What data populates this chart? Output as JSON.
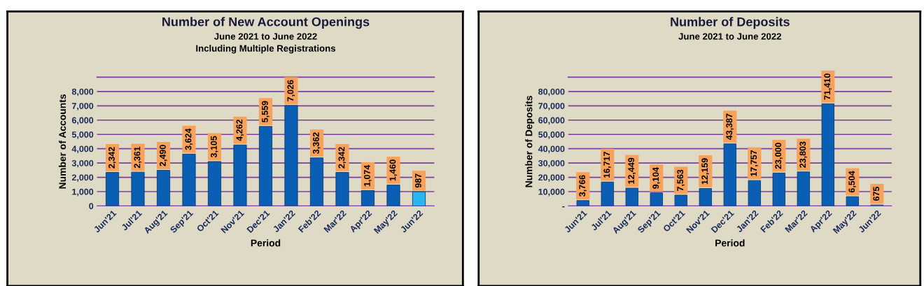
{
  "chart_data": [
    {
      "type": "bar",
      "title": "Number of New Account Openings",
      "subtitle": "June 2021 to June 2022\nIncluding Multiple Registrations",
      "xlabel": "Period",
      "ylabel": "Number of Accounts",
      "categories": [
        "Jun'21",
        "Jul'21",
        "Aug'21",
        "Sep'21",
        "Oct'21",
        "Nov'21",
        "Dec'21",
        "Jan'22",
        "Feb'22",
        "Mar'22",
        "Apr'22",
        "May'22",
        "Jun'22"
      ],
      "values": [
        2342,
        2361,
        2490,
        3624,
        3105,
        4262,
        5559,
        7026,
        3362,
        2342,
        1074,
        1460,
        987
      ],
      "colors": [
        "#0a5fb4",
        "#0a5fb4",
        "#0a5fb4",
        "#0a5fb4",
        "#0a5fb4",
        "#0a5fb4",
        "#0a5fb4",
        "#0a5fb4",
        "#0a5fb4",
        "#0a5fb4",
        "#0a5fb4",
        "#0a5fb4",
        "#29b6f0"
      ],
      "value_labels": [
        "2,342",
        "2,361",
        "2,490",
        "3,624",
        "3,105",
        "4,262",
        "5,559",
        "7,026",
        "3,362",
        "2,342",
        "1,074",
        "1,460",
        "987"
      ],
      "ylim": [
        0,
        9000
      ],
      "yticks": [
        {
          "value": 0,
          "label": "0"
        },
        {
          "value": 1000,
          "label": "1,000"
        },
        {
          "value": 2000,
          "label": "2,000"
        },
        {
          "value": 3000,
          "label": "3,000"
        },
        {
          "value": 4000,
          "label": "4,000"
        },
        {
          "value": 5000,
          "label": "5,000"
        },
        {
          "value": 6000,
          "label": "6,000"
        },
        {
          "value": 7000,
          "label": "7,000"
        },
        {
          "value": 8000,
          "label": "8,000"
        }
      ],
      "grid": "y"
    },
    {
      "type": "bar",
      "title": "Number of Deposits",
      "subtitle": "June 2021 to June 2022",
      "xlabel": "Period",
      "ylabel": "Number of Deposits",
      "categories": [
        "Jun'21",
        "Jul'21",
        "Aug'21",
        "Sep'21",
        "Oct'21",
        "Nov'21",
        "Dec'21",
        "Jan'22",
        "Feb'22",
        "Mar'22",
        "Apr'22",
        "May'22",
        "Jun'22"
      ],
      "values": [
        3766,
        16717,
        12449,
        9104,
        7563,
        12159,
        43387,
        17757,
        23000,
        23803,
        71410,
        6504,
        675
      ],
      "colors": [
        "#0a5fb4",
        "#0a5fb4",
        "#0a5fb4",
        "#0a5fb4",
        "#0a5fb4",
        "#0a5fb4",
        "#0a5fb4",
        "#0a5fb4",
        "#0a5fb4",
        "#0a5fb4",
        "#0a5fb4",
        "#0a5fb4",
        "#29b6f0"
      ],
      "value_labels": [
        "3,766",
        "16,717",
        "12,449",
        "9,104",
        "7,563",
        "12,159",
        "43,387",
        "17,757",
        "23,000",
        "23,803",
        "71,410",
        "6,504",
        "675"
      ],
      "ylim": [
        0,
        90000
      ],
      "yticks": [
        {
          "value": 0,
          "label": "-"
        },
        {
          "value": 10000,
          "label": "10,000"
        },
        {
          "value": 20000,
          "label": "20,000"
        },
        {
          "value": 30000,
          "label": "30,000"
        },
        {
          "value": 40000,
          "label": "40,000"
        },
        {
          "value": 50000,
          "label": "50,000"
        },
        {
          "value": 60000,
          "label": "60,000"
        },
        {
          "value": 70000,
          "label": "70,000"
        },
        {
          "value": 80000,
          "label": "80,000"
        }
      ],
      "grid": "y"
    }
  ]
}
